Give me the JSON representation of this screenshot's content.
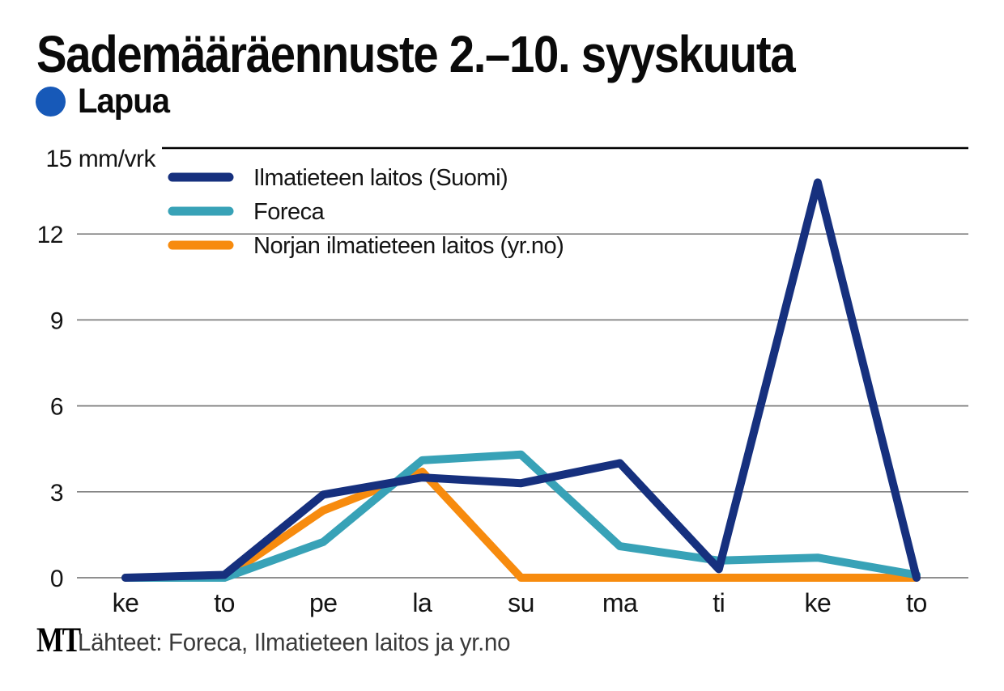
{
  "header": {
    "title": "Sademääräennuste 2.–10. syyskuuta",
    "location": "Lapua"
  },
  "colors": {
    "location_dot": "#1759b8",
    "grid_line": "#7f7f7f",
    "axis_top_line": "#000000",
    "axis_text": "#141414",
    "source_text": "#3a3a3a"
  },
  "chart_data": {
    "type": "line",
    "title": "Sademääräennuste 2.–10. syyskuuta",
    "location": "Lapua",
    "ylabel": "",
    "xlabel": "",
    "unit": "mm/vrk",
    "y_top_label": "15 mm/vrk",
    "y_ticks": [
      0,
      3,
      6,
      9,
      12
    ],
    "ylim": [
      0,
      15
    ],
    "grid": true,
    "legend_position": "top-left",
    "x_categories": [
      "ke",
      "to",
      "pe",
      "la",
      "su",
      "ma",
      "ti",
      "ke",
      "to"
    ],
    "series": [
      {
        "name": "Ilmatieteen laitos (Suomi)",
        "color": "#16307e",
        "values": [
          0,
          0.1,
          2.9,
          3.5,
          3.3,
          4.0,
          0.3,
          13.8,
          0
        ]
      },
      {
        "name": "Foreca",
        "color": "#38a2b7",
        "values": [
          0,
          0,
          1.25,
          4.1,
          4.3,
          1.1,
          0.6,
          0.7,
          0.1
        ]
      },
      {
        "name": "Norjan ilmatieteen laitos (yr.no)",
        "color": "#f78b0e",
        "values": [
          0,
          0,
          2.35,
          3.7,
          0,
          0,
          0,
          0,
          0
        ]
      }
    ]
  },
  "footer": {
    "logo": "MT",
    "source": "Lähteet: Foreca, Ilmatieteen laitos ja yr.no"
  }
}
